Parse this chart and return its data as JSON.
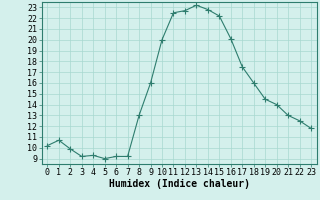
{
  "x": [
    0,
    1,
    2,
    3,
    4,
    5,
    6,
    7,
    8,
    9,
    10,
    11,
    12,
    13,
    14,
    15,
    16,
    17,
    18,
    19,
    20,
    21,
    22,
    23
  ],
  "y": [
    10.2,
    10.7,
    9.9,
    9.2,
    9.3,
    9.0,
    9.2,
    9.2,
    13.0,
    16.0,
    20.0,
    22.5,
    22.7,
    23.2,
    22.8,
    22.2,
    20.1,
    17.5,
    16.0,
    14.5,
    14.0,
    13.0,
    12.5,
    11.8
  ],
  "title": "",
  "xlabel": "Humidex (Indice chaleur)",
  "xlim": [
    -0.5,
    23.5
  ],
  "ylim": [
    8.5,
    23.5
  ],
  "yticks": [
    9,
    10,
    11,
    12,
    13,
    14,
    15,
    16,
    17,
    18,
    19,
    20,
    21,
    22,
    23
  ],
  "xticks": [
    0,
    1,
    2,
    3,
    4,
    5,
    6,
    7,
    8,
    9,
    10,
    11,
    12,
    13,
    14,
    15,
    16,
    17,
    18,
    19,
    20,
    21,
    22,
    23
  ],
  "line_color": "#2e7d6e",
  "marker": "+",
  "marker_size": 4,
  "bg_color": "#d4f0ec",
  "grid_color": "#a8d8d0",
  "xlabel_fontsize": 7,
  "tick_fontsize": 6
}
